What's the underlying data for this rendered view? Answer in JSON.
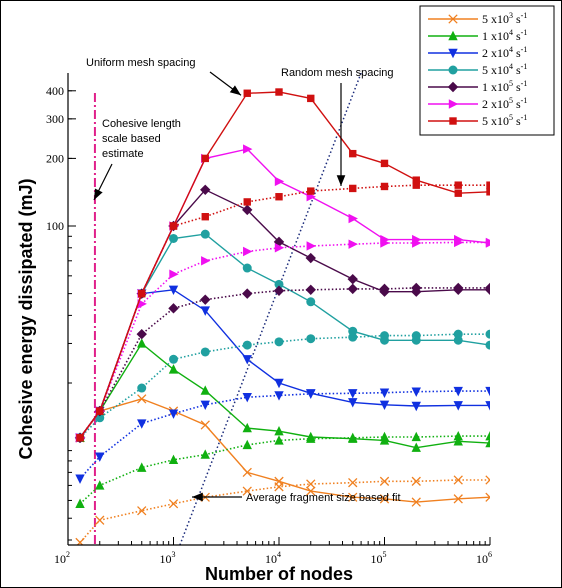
{
  "chart_data": {
    "type": "line",
    "xlabel": "Number of nodes",
    "ylabel": "Cohesive energy dissipated  (mJ)",
    "xscale": "log",
    "yscale": "log",
    "xlim": [
      100,
      1000000
    ],
    "ylim": [
      3.8,
      480
    ],
    "grid": false,
    "legend_position": "top-right",
    "x_ticks": [
      {
        "base": "10",
        "exp": "2",
        "value": 100
      },
      {
        "base": "10",
        "exp": "3",
        "value": 1000
      },
      {
        "base": "10",
        "exp": "4",
        "value": 10000
      },
      {
        "base": "10",
        "exp": "5",
        "value": 100000
      },
      {
        "base": "10",
        "exp": "6",
        "value": 1000000
      }
    ],
    "y_ticks": [
      {
        "label": "100",
        "value": 100
      },
      {
        "label": "200",
        "value": 200
      },
      {
        "label": "300",
        "value": 300
      },
      {
        "label": "400",
        "value": 400
      }
    ],
    "uniform_x": [
      130,
      200,
      500,
      1000,
      2000,
      5000,
      10000,
      20000,
      50000,
      100000,
      200000,
      500000,
      1000000
    ],
    "random_x": [
      130,
      200,
      500,
      1000,
      2000,
      5000,
      10000,
      20000,
      50000,
      100000,
      200000,
      500000,
      1000000
    ],
    "series": [
      {
        "name": "5 x10^3 s^-1",
        "name_base": "5 x10",
        "name_exp": "3",
        "name_unit": " s",
        "name_unit_exp": "-1",
        "color": "#f08020",
        "marker": "x",
        "uniform": [
          11.4,
          15.0,
          17.0,
          15.0,
          13.0,
          8.0,
          7.3,
          6.6,
          6.2,
          6.1,
          5.9,
          6.1,
          6.2
        ],
        "random": [
          3.9,
          4.9,
          5.4,
          5.8,
          6.2,
          6.6,
          6.9,
          7.1,
          7.2,
          7.3,
          7.3,
          7.4,
          7.4
        ]
      },
      {
        "name": "1 x10^4 s^-1",
        "name_base": "1 x10",
        "name_exp": "4",
        "name_unit": " s",
        "name_unit_exp": "-1",
        "color": "#10b010",
        "marker": "triangle",
        "uniform": [
          11.4,
          15.0,
          30.0,
          23.0,
          18.5,
          12.6,
          12.2,
          11.5,
          11.3,
          11.1,
          10.3,
          11.0,
          10.8
        ],
        "random": [
          5.8,
          7.0,
          8.4,
          9.1,
          9.6,
          10.6,
          11.1,
          11.3,
          11.4,
          11.5,
          11.5,
          11.6,
          11.6
        ]
      },
      {
        "name": "2 x10^4 s^-1",
        "name_base": "2 x10",
        "name_exp": "4",
        "name_unit": " s",
        "name_unit_exp": "-1",
        "color": "#1030e0",
        "marker": "triangle-down",
        "uniform": [
          11.4,
          15.0,
          50.0,
          52.0,
          42.0,
          25.5,
          20.0,
          18.0,
          16.4,
          16.0,
          15.8,
          15.9,
          15.9
        ],
        "random": [
          7.5,
          9.4,
          13.2,
          14.6,
          16.0,
          17.3,
          17.6,
          17.9,
          18.0,
          18.1,
          18.3,
          18.4,
          18.4
        ]
      },
      {
        "name": "5 x10^4 s^-1",
        "name_base": "5 x10",
        "name_exp": "4",
        "name_unit": " s",
        "name_unit_exp": "-1",
        "color": "#20a0a0",
        "marker": "circle",
        "uniform": [
          11.4,
          15.0,
          50.0,
          88.0,
          92.0,
          65.0,
          55.0,
          46.0,
          34.0,
          31.0,
          31.0,
          31.0,
          29.5
        ],
        "random": [
          11.4,
          14.0,
          19.0,
          25.5,
          27.5,
          29.5,
          30.5,
          31.5,
          32.0,
          32.5,
          32.5,
          33.0,
          33.0
        ]
      },
      {
        "name": "1 x10^5 s^-1",
        "name_base": "1 x10",
        "name_exp": "5",
        "name_unit": " s",
        "name_unit_exp": "-1",
        "color": "#4a0a4a",
        "marker": "diamond",
        "uniform": [
          11.4,
          15.0,
          50.0,
          100.0,
          145.0,
          118.0,
          85.0,
          72.0,
          58.0,
          51.0,
          51.0,
          52.0,
          52.0
        ],
        "random": [
          11.4,
          15.0,
          33.0,
          43.0,
          47.0,
          50.0,
          51.5,
          52.0,
          52.5,
          52.5,
          53.0,
          53.0,
          53.0
        ]
      },
      {
        "name": "2 x10^5 s^-1",
        "name_base": "2 x10",
        "name_exp": "5",
        "name_unit": " s",
        "name_unit_exp": "-1",
        "color": "#f010f0",
        "marker": "triangle-right",
        "uniform": [
          11.4,
          15.0,
          50.0,
          100.0,
          200.0,
          220.0,
          158.0,
          135.0,
          108.0,
          87.0,
          87.0,
          87.0,
          84.0
        ],
        "random": [
          11.4,
          15.0,
          45.0,
          61.0,
          70.0,
          77.0,
          80.0,
          81.5,
          83.0,
          84.0,
          84.0,
          84.5,
          84.5
        ]
      },
      {
        "name": "5 x10^5 s^-1",
        "name_base": "5 x10",
        "name_exp": "5",
        "name_unit": " s",
        "name_unit_exp": "-1",
        "color": "#d01010",
        "marker": "square",
        "uniform": [
          11.4,
          15.0,
          50.0,
          100.0,
          200.0,
          390.0,
          395.0,
          370.0,
          210.0,
          190.0,
          160.0,
          140.0,
          142.0
        ],
        "random": [
          11.4,
          15.0,
          50.0,
          100.0,
          110.0,
          128.0,
          135.0,
          143.0,
          147.0,
          150.0,
          152.0,
          152.0,
          152.0
        ]
      }
    ],
    "annotations": {
      "uniform": "Uniform mesh spacing",
      "random": "Random mesh spacing",
      "cohesive_line1": "Cohesive length",
      "cohesive_line2": "scale based",
      "cohesive_line3": "estimate",
      "fragment": "Average fragment size based fit"
    },
    "reference_lines": {
      "cohesive_x": 180,
      "cohesive_color": "#e0208a",
      "fragment_points": [
        [
          1150,
          3.8
        ],
        [
          60000,
          480
        ]
      ]
    }
  }
}
